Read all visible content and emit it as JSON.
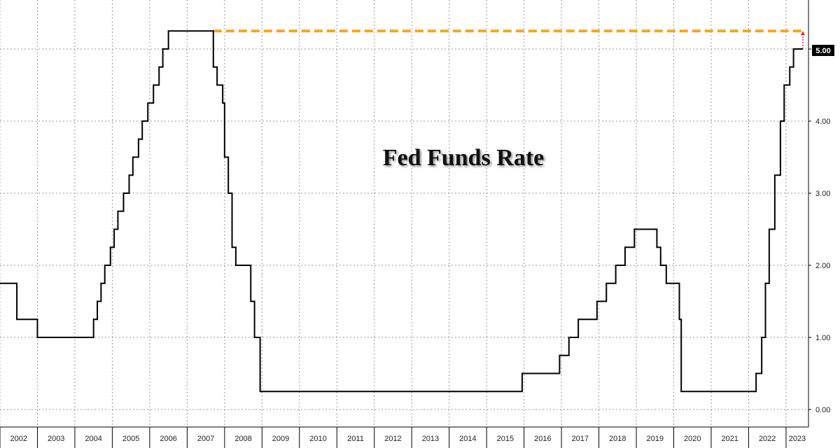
{
  "chart_data": {
    "type": "line",
    "title": "Fed Funds Rate",
    "xlabel": "",
    "ylabel": "",
    "xlim": [
      2002.0,
      2023.6
    ],
    "ylim": [
      0,
      5.5
    ],
    "y_ticks": [
      "0.00",
      "1.00",
      "2.00",
      "3.00",
      "4.00",
      "5.00"
    ],
    "x_ticks": [
      "2002",
      "2003",
      "2004",
      "2005",
      "2006",
      "2007",
      "2008",
      "2009",
      "2010",
      "2011",
      "2012",
      "2013",
      "2014",
      "2015",
      "2016",
      "2017",
      "2018",
      "2019",
      "2020",
      "2021",
      "2022",
      "2023"
    ],
    "grid": true,
    "last_value_label": "5.00",
    "colors": {
      "line": "#000000",
      "reference": "#f5a623",
      "arrow": "#d93025",
      "grid": "#9a9a9a",
      "value_box": "#000000"
    },
    "series": [
      {
        "step": "post",
        "x": [
          2001.95,
          2002.45,
          2003.0,
          2003.5,
          2004.5,
          2004.6,
          2004.7,
          2004.8,
          2004.95,
          2005.05,
          2005.15,
          2005.3,
          2005.45,
          2005.55,
          2005.7,
          2005.8,
          2005.95,
          2006.1,
          2006.25,
          2006.35,
          2006.5,
          2007.7,
          2007.8,
          2007.95,
          2008.0,
          2008.1,
          2008.2,
          2008.3,
          2008.7,
          2008.8,
          2008.95,
          2015.95,
          2016.95,
          2017.2,
          2017.45,
          2017.95,
          2018.2,
          2018.45,
          2018.7,
          2018.95,
          2019.55,
          2019.65,
          2019.8,
          2020.15,
          2020.2,
          2022.2,
          2022.35,
          2022.45,
          2022.55,
          2022.7,
          2022.85,
          2022.95,
          2023.1,
          2023.2,
          2023.35,
          2023.45
        ],
        "y": [
          1.75,
          1.25,
          1.0,
          1.0,
          1.25,
          1.5,
          1.75,
          2.0,
          2.25,
          2.5,
          2.75,
          3.0,
          3.25,
          3.5,
          3.75,
          4.0,
          4.25,
          4.5,
          4.75,
          5.0,
          5.25,
          4.75,
          4.5,
          4.25,
          3.5,
          3.0,
          2.25,
          2.0,
          1.5,
          1.0,
          0.25,
          0.5,
          0.75,
          1.0,
          1.25,
          1.5,
          1.75,
          2.0,
          2.25,
          2.5,
          2.25,
          2.0,
          1.75,
          1.25,
          0.25,
          0.5,
          1.0,
          1.75,
          2.5,
          3.25,
          4.0,
          4.5,
          4.75,
          5.0,
          5.0,
          5.0
        ]
      }
    ],
    "reference_line": {
      "x_start": 2007.7,
      "x_end": 2023.45,
      "y": 5.25
    },
    "arrow": {
      "x": 2023.45,
      "from": 5.0,
      "to": 5.25
    }
  }
}
